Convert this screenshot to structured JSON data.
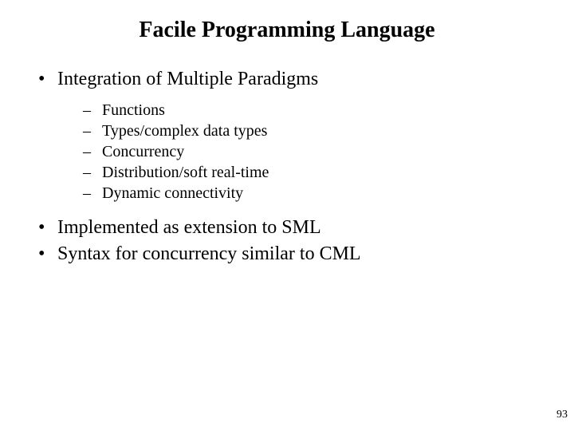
{
  "slide": {
    "title": "Facile Programming Language",
    "title_fontsize": 28,
    "title_weight": "bold",
    "bullets": [
      {
        "text": "Integration of Multiple Paradigms",
        "subs": [
          "Functions",
          "Types/complex data types",
          "Concurrency",
          "Distribution/soft real-time",
          "Dynamic connectivity"
        ]
      },
      {
        "text": "Implemented as extension to SML",
        "subs": []
      },
      {
        "text": "Syntax for concurrency similar to CML",
        "subs": []
      }
    ],
    "bullet_fontsize": 24,
    "sub_fontsize": 20,
    "page_number": "93",
    "page_number_fontsize": 14,
    "background_color": "#ffffff",
    "text_color": "#000000",
    "font_family": "Times New Roman"
  }
}
